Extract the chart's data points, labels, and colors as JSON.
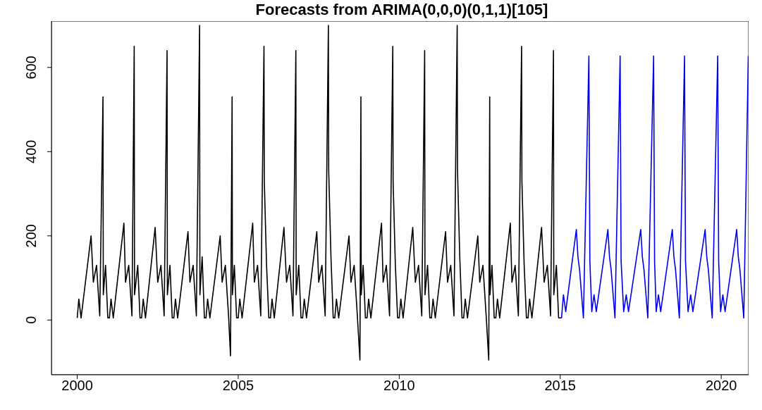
{
  "chart_data": {
    "type": "line",
    "title": "Forecasts from ARIMA(0,0,0)(0,1,1)[105]",
    "xlim": [
      1999.2,
      2020.85
    ],
    "xticks": [
      2000,
      2005,
      2010,
      2015,
      2020
    ],
    "ylim": [
      -130,
      710
    ],
    "yticks": [
      0,
      200,
      400,
      600
    ],
    "marker": "none",
    "line_style": "solid",
    "series": [
      {
        "color": "#000000",
        "x": [
          2000.0,
          2000.05,
          2000.12,
          2000.43,
          2000.5,
          2000.6,
          2000.7,
          2000.8,
          2000.81,
          2000.88,
          2000.95,
          2001.0,
          2001.05,
          2001.12,
          2001.45,
          2001.5,
          2001.6,
          2001.7,
          2001.77,
          2001.78,
          2001.88,
          2001.95,
          2002.0,
          2002.05,
          2002.12,
          2002.42,
          2002.5,
          2002.6,
          2002.7,
          2002.79,
          2002.8,
          2002.88,
          2002.95,
          2003.0,
          2003.05,
          2003.12,
          2003.44,
          2003.5,
          2003.6,
          2003.7,
          2003.8,
          2003.81,
          2003.88,
          2003.95,
          2004.0,
          2004.05,
          2004.12,
          2004.44,
          2004.5,
          2004.6,
          2004.7,
          2004.76,
          2004.81,
          2004.82,
          2004.88,
          2004.95,
          2005.0,
          2005.05,
          2005.12,
          2005.45,
          2005.5,
          2005.6,
          2005.7,
          2005.8,
          2005.81,
          2005.88,
          2005.95,
          2006.0,
          2006.05,
          2006.12,
          2006.42,
          2006.5,
          2006.6,
          2006.7,
          2006.79,
          2006.8,
          2006.88,
          2006.95,
          2007.0,
          2007.05,
          2007.12,
          2007.44,
          2007.5,
          2007.6,
          2007.7,
          2007.8,
          2007.81,
          2007.88,
          2007.95,
          2008.0,
          2008.05,
          2008.12,
          2008.44,
          2008.5,
          2008.6,
          2008.7,
          2008.78,
          2008.81,
          2008.82,
          2008.88,
          2008.95,
          2009.0,
          2009.05,
          2009.12,
          2009.45,
          2009.5,
          2009.6,
          2009.7,
          2009.8,
          2009.81,
          2009.88,
          2009.95,
          2010.0,
          2010.05,
          2010.12,
          2010.42,
          2010.5,
          2010.6,
          2010.7,
          2010.79,
          2010.8,
          2010.88,
          2010.95,
          2011.0,
          2011.05,
          2011.12,
          2011.44,
          2011.5,
          2011.6,
          2011.7,
          2011.8,
          2011.81,
          2011.88,
          2011.95,
          2012.0,
          2012.05,
          2012.12,
          2012.44,
          2012.5,
          2012.6,
          2012.7,
          2012.78,
          2012.81,
          2012.82,
          2012.88,
          2012.95,
          2013.0,
          2013.05,
          2013.12,
          2013.45,
          2013.5,
          2013.6,
          2013.7,
          2013.8,
          2013.81,
          2013.88,
          2013.95,
          2014.0,
          2014.05,
          2014.12,
          2014.42,
          2014.5,
          2014.6,
          2014.7,
          2014.79,
          2014.8,
          2014.88,
          2014.95,
          2015.04
        ],
        "values": [
          5,
          50,
          5,
          200,
          90,
          130,
          10,
          530,
          60,
          130,
          5,
          5,
          50,
          5,
          230,
          90,
          130,
          10,
          650,
          60,
          130,
          5,
          5,
          50,
          5,
          220,
          90,
          130,
          10,
          640,
          60,
          130,
          5,
          5,
          50,
          5,
          210,
          90,
          130,
          10,
          700,
          60,
          150,
          5,
          5,
          50,
          5,
          200,
          90,
          130,
          10,
          -85,
          530,
          60,
          130,
          5,
          5,
          50,
          5,
          230,
          90,
          130,
          10,
          650,
          330,
          130,
          5,
          5,
          50,
          5,
          220,
          90,
          130,
          10,
          640,
          60,
          130,
          5,
          5,
          50,
          5,
          210,
          90,
          130,
          10,
          700,
          355,
          150,
          5,
          5,
          50,
          5,
          200,
          90,
          130,
          10,
          -95,
          530,
          60,
          130,
          5,
          5,
          50,
          5,
          230,
          90,
          130,
          10,
          650,
          330,
          130,
          5,
          5,
          50,
          5,
          220,
          90,
          130,
          10,
          640,
          60,
          130,
          5,
          5,
          50,
          5,
          210,
          90,
          130,
          10,
          700,
          355,
          150,
          5,
          5,
          50,
          5,
          200,
          90,
          130,
          10,
          -95,
          530,
          60,
          130,
          5,
          5,
          50,
          5,
          230,
          90,
          130,
          10,
          650,
          330,
          130,
          5,
          5,
          50,
          5,
          220,
          90,
          130,
          10,
          640,
          60,
          130,
          5,
          5
        ]
      },
      {
        "color": "#0000ee",
        "x": [
          2015.04,
          2015.1,
          2015.17,
          2015.5,
          2015.55,
          2015.6,
          2015.72,
          2015.89,
          2015.92,
          2015.98,
          2016.05,
          2016.12,
          2016.48,
          2016.53,
          2016.58,
          2016.7,
          2016.86,
          2016.89,
          2016.97,
          2017.05,
          2017.12,
          2017.5,
          2017.55,
          2017.6,
          2017.72,
          2017.9,
          2017.93,
          2017.98,
          2018.05,
          2018.12,
          2018.48,
          2018.53,
          2018.58,
          2018.7,
          2018.86,
          2018.89,
          2018.97,
          2019.05,
          2019.12,
          2019.5,
          2019.55,
          2019.6,
          2019.72,
          2019.89,
          2019.92,
          2019.98,
          2020.05,
          2020.12,
          2020.48,
          2020.53,
          2020.58,
          2020.7,
          2020.84
        ],
        "values": [
          5,
          60,
          20,
          215,
          150,
          120,
          5,
          627,
          140,
          20,
          60,
          20,
          215,
          150,
          120,
          5,
          627,
          140,
          20,
          60,
          20,
          215,
          150,
          120,
          5,
          627,
          140,
          20,
          60,
          20,
          215,
          150,
          120,
          5,
          627,
          140,
          20,
          60,
          20,
          215,
          150,
          120,
          5,
          627,
          140,
          20,
          60,
          20,
          215,
          150,
          120,
          5,
          627
        ]
      }
    ]
  }
}
